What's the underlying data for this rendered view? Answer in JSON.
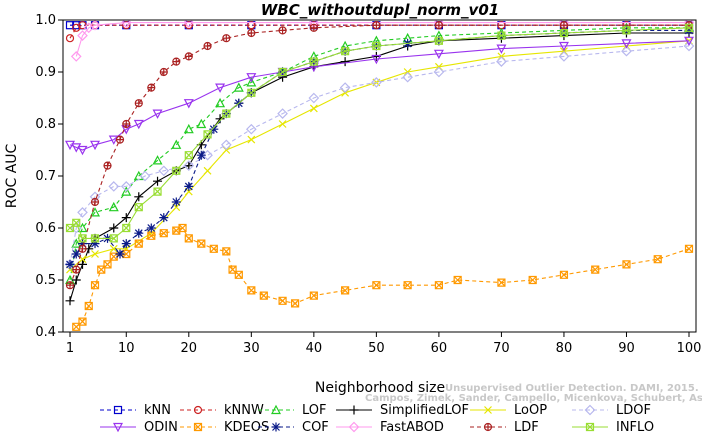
{
  "chart_data": {
    "type": "line",
    "title": "WBC_withoutdupl_norm_v01",
    "xlabel": "Neighborhood size",
    "ylabel": "ROC AUC",
    "xlim": [
      1,
      100
    ],
    "ylim": [
      0.4,
      1.0
    ],
    "xticks": [
      1,
      10,
      20,
      30,
      40,
      50,
      60,
      70,
      80,
      90,
      100
    ],
    "yticks": [
      0.4,
      0.5,
      0.6,
      0.7,
      0.8,
      0.9,
      1.0
    ],
    "xtick_labels": [
      "1",
      "10",
      "20",
      "30",
      "40",
      "50",
      "60",
      "70",
      "80",
      "90",
      "100"
    ],
    "ytick_labels": [
      "0.4",
      "0.5",
      "0.6",
      "0.7",
      "0.8",
      "0.9",
      "1.0"
    ],
    "grid": false,
    "legend_position": "bottom",
    "series": [
      {
        "name": "kNN",
        "color": "#0000cc",
        "marker": "square",
        "dash": "4,3",
        "points": [
          [
            1,
            0.99
          ],
          [
            2,
            0.99
          ],
          [
            3,
            0.99
          ],
          [
            5,
            0.99
          ],
          [
            10,
            0.99
          ],
          [
            20,
            0.99
          ],
          [
            30,
            0.99
          ],
          [
            40,
            0.99
          ],
          [
            50,
            0.99
          ],
          [
            60,
            0.99
          ],
          [
            70,
            0.99
          ],
          [
            80,
            0.99
          ],
          [
            90,
            0.99
          ],
          [
            100,
            0.99
          ]
        ]
      },
      {
        "name": "kNNW",
        "color": "#cc2222",
        "marker": "circle",
        "dash": "4,3",
        "points": [
          [
            1,
            0.965
          ],
          [
            2,
            0.985
          ],
          [
            3,
            0.99
          ],
          [
            5,
            0.99
          ],
          [
            10,
            0.99
          ],
          [
            20,
            0.99
          ],
          [
            30,
            0.99
          ],
          [
            40,
            0.99
          ],
          [
            50,
            0.99
          ],
          [
            60,
            0.99
          ],
          [
            70,
            0.99
          ],
          [
            80,
            0.99
          ],
          [
            90,
            0.99
          ],
          [
            100,
            0.99
          ]
        ]
      },
      {
        "name": "LOF",
        "color": "#22cc22",
        "marker": "triangle-up",
        "dash": "4,3",
        "points": [
          [
            1,
            0.5
          ],
          [
            2,
            0.57
          ],
          [
            3,
            0.6
          ],
          [
            5,
            0.63
          ],
          [
            8,
            0.64
          ],
          [
            10,
            0.67
          ],
          [
            12,
            0.7
          ],
          [
            15,
            0.73
          ],
          [
            18,
            0.76
          ],
          [
            20,
            0.79
          ],
          [
            22,
            0.8
          ],
          [
            25,
            0.84
          ],
          [
            28,
            0.87
          ],
          [
            30,
            0.88
          ],
          [
            35,
            0.9
          ],
          [
            40,
            0.93
          ],
          [
            45,
            0.95
          ],
          [
            50,
            0.96
          ],
          [
            55,
            0.965
          ],
          [
            60,
            0.97
          ],
          [
            70,
            0.975
          ],
          [
            80,
            0.98
          ],
          [
            90,
            0.985
          ],
          [
            100,
            0.985
          ]
        ]
      },
      {
        "name": "SimplifiedLOF",
        "color": "#000000",
        "marker": "plus",
        "dash": "",
        "points": [
          [
            1,
            0.46
          ],
          [
            2,
            0.5
          ],
          [
            3,
            0.53
          ],
          [
            4,
            0.56
          ],
          [
            5,
            0.58
          ],
          [
            8,
            0.6
          ],
          [
            10,
            0.62
          ],
          [
            12,
            0.66
          ],
          [
            15,
            0.69
          ],
          [
            18,
            0.71
          ],
          [
            20,
            0.72
          ],
          [
            22,
            0.76
          ],
          [
            25,
            0.81
          ],
          [
            28,
            0.84
          ],
          [
            30,
            0.86
          ],
          [
            35,
            0.89
          ],
          [
            40,
            0.91
          ],
          [
            45,
            0.92
          ],
          [
            50,
            0.93
          ],
          [
            55,
            0.95
          ],
          [
            60,
            0.96
          ],
          [
            70,
            0.965
          ],
          [
            80,
            0.97
          ],
          [
            90,
            0.975
          ],
          [
            100,
            0.975
          ]
        ]
      },
      {
        "name": "LoOP",
        "color": "#e6e600",
        "marker": "cross",
        "dash": "",
        "points": [
          [
            1,
            0.52
          ],
          [
            3,
            0.54
          ],
          [
            5,
            0.55
          ],
          [
            8,
            0.56
          ],
          [
            10,
            0.56
          ],
          [
            14,
            0.59
          ],
          [
            18,
            0.64
          ],
          [
            20,
            0.67
          ],
          [
            23,
            0.71
          ],
          [
            26,
            0.75
          ],
          [
            30,
            0.77
          ],
          [
            35,
            0.8
          ],
          [
            40,
            0.83
          ],
          [
            45,
            0.86
          ],
          [
            50,
            0.88
          ],
          [
            55,
            0.9
          ],
          [
            60,
            0.91
          ],
          [
            70,
            0.93
          ],
          [
            80,
            0.94
          ],
          [
            90,
            0.95
          ],
          [
            100,
            0.96
          ]
        ]
      },
      {
        "name": "LDOF",
        "color": "#b8b8ee",
        "marker": "diamond",
        "dash": "4,3",
        "points": [
          [
            1,
            0.53
          ],
          [
            2,
            0.6
          ],
          [
            3,
            0.63
          ],
          [
            5,
            0.66
          ],
          [
            8,
            0.68
          ],
          [
            10,
            0.68
          ],
          [
            13,
            0.7
          ],
          [
            16,
            0.71
          ],
          [
            20,
            0.72
          ],
          [
            23,
            0.74
          ],
          [
            26,
            0.76
          ],
          [
            30,
            0.79
          ],
          [
            35,
            0.82
          ],
          [
            40,
            0.85
          ],
          [
            45,
            0.87
          ],
          [
            50,
            0.88
          ],
          [
            55,
            0.89
          ],
          [
            60,
            0.9
          ],
          [
            70,
            0.92
          ],
          [
            80,
            0.93
          ],
          [
            90,
            0.94
          ],
          [
            100,
            0.95
          ]
        ]
      },
      {
        "name": "ODIN",
        "color": "#9933ee",
        "marker": "triangle-down",
        "dash": "",
        "points": [
          [
            1,
            0.76
          ],
          [
            2,
            0.755
          ],
          [
            3,
            0.75
          ],
          [
            5,
            0.76
          ],
          [
            8,
            0.77
          ],
          [
            10,
            0.79
          ],
          [
            12,
            0.8
          ],
          [
            15,
            0.82
          ],
          [
            20,
            0.84
          ],
          [
            25,
            0.87
          ],
          [
            30,
            0.89
          ],
          [
            35,
            0.9
          ],
          [
            40,
            0.91
          ],
          [
            50,
            0.925
          ],
          [
            60,
            0.935
          ],
          [
            70,
            0.945
          ],
          [
            80,
            0.95
          ],
          [
            90,
            0.955
          ],
          [
            100,
            0.96
          ]
        ]
      },
      {
        "name": "KDEOS",
        "color": "#ff9900",
        "marker": "boxed-cross",
        "dash": "4,3",
        "points": [
          [
            2,
            0.41
          ],
          [
            3,
            0.42
          ],
          [
            4,
            0.45
          ],
          [
            5,
            0.49
          ],
          [
            6,
            0.52
          ],
          [
            7,
            0.53
          ],
          [
            8,
            0.545
          ],
          [
            10,
            0.55
          ],
          [
            12,
            0.57
          ],
          [
            14,
            0.585
          ],
          [
            16,
            0.59
          ],
          [
            18,
            0.595
          ],
          [
            19,
            0.6
          ],
          [
            20,
            0.58
          ],
          [
            22,
            0.57
          ],
          [
            24,
            0.56
          ],
          [
            26,
            0.555
          ],
          [
            27,
            0.52
          ],
          [
            28,
            0.51
          ],
          [
            30,
            0.48
          ],
          [
            32,
            0.47
          ],
          [
            35,
            0.46
          ],
          [
            37,
            0.455
          ],
          [
            40,
            0.47
          ],
          [
            45,
            0.48
          ],
          [
            50,
            0.49
          ],
          [
            55,
            0.49
          ],
          [
            60,
            0.49
          ],
          [
            63,
            0.5
          ],
          [
            70,
            0.495
          ],
          [
            75,
            0.5
          ],
          [
            80,
            0.51
          ],
          [
            85,
            0.52
          ],
          [
            90,
            0.53
          ],
          [
            95,
            0.54
          ],
          [
            100,
            0.56
          ]
        ]
      },
      {
        "name": "COF",
        "color": "#0a1a88",
        "marker": "asterisk",
        "dash": "4,3",
        "points": [
          [
            1,
            0.53
          ],
          [
            2,
            0.55
          ],
          [
            3,
            0.57
          ],
          [
            5,
            0.57
          ],
          [
            7,
            0.58
          ],
          [
            9,
            0.55
          ],
          [
            10,
            0.57
          ],
          [
            12,
            0.59
          ],
          [
            14,
            0.6
          ],
          [
            16,
            0.62
          ],
          [
            18,
            0.65
          ],
          [
            20,
            0.68
          ],
          [
            22,
            0.74
          ],
          [
            24,
            0.79
          ],
          [
            26,
            0.82
          ],
          [
            28,
            0.84
          ],
          [
            30,
            0.86
          ],
          [
            35,
            0.9
          ],
          [
            40,
            0.92
          ],
          [
            45,
            0.94
          ],
          [
            50,
            0.95
          ],
          [
            55,
            0.955
          ],
          [
            60,
            0.96
          ],
          [
            70,
            0.97
          ],
          [
            80,
            0.975
          ],
          [
            90,
            0.98
          ],
          [
            100,
            0.98
          ]
        ]
      },
      {
        "name": "FastABOD",
        "color": "#ff99ee",
        "marker": "diamond",
        "dash": "",
        "points": [
          [
            2,
            0.93
          ],
          [
            3,
            0.97
          ],
          [
            4,
            0.985
          ],
          [
            5,
            0.99
          ],
          [
            10,
            0.995
          ],
          [
            20,
            0.995
          ],
          [
            40,
            0.995
          ],
          [
            60,
            0.995
          ],
          [
            80,
            0.995
          ],
          [
            100,
            0.995
          ]
        ]
      },
      {
        "name": "LDF",
        "color": "#aa2222",
        "marker": "circle-plus",
        "dash": "4,3",
        "points": [
          [
            1,
            0.49
          ],
          [
            2,
            0.52
          ],
          [
            3,
            0.56
          ],
          [
            5,
            0.65
          ],
          [
            7,
            0.72
          ],
          [
            9,
            0.77
          ],
          [
            10,
            0.8
          ],
          [
            12,
            0.84
          ],
          [
            14,
            0.87
          ],
          [
            16,
            0.9
          ],
          [
            18,
            0.92
          ],
          [
            20,
            0.93
          ],
          [
            23,
            0.95
          ],
          [
            26,
            0.965
          ],
          [
            30,
            0.975
          ],
          [
            35,
            0.98
          ],
          [
            40,
            0.985
          ],
          [
            50,
            0.99
          ],
          [
            60,
            0.99
          ],
          [
            80,
            0.99
          ],
          [
            100,
            0.99
          ]
        ]
      },
      {
        "name": "INFLO",
        "color": "#99dd33",
        "marker": "boxed-cross",
        "dash": "",
        "points": [
          [
            1,
            0.6
          ],
          [
            2,
            0.61
          ],
          [
            3,
            0.58
          ],
          [
            5,
            0.58
          ],
          [
            8,
            0.58
          ],
          [
            10,
            0.6
          ],
          [
            12,
            0.64
          ],
          [
            15,
            0.67
          ],
          [
            18,
            0.71
          ],
          [
            20,
            0.74
          ],
          [
            23,
            0.78
          ],
          [
            26,
            0.82
          ],
          [
            30,
            0.86
          ],
          [
            35,
            0.9
          ],
          [
            40,
            0.92
          ],
          [
            45,
            0.94
          ],
          [
            50,
            0.95
          ],
          [
            60,
            0.96
          ],
          [
            70,
            0.97
          ],
          [
            80,
            0.975
          ],
          [
            90,
            0.98
          ],
          [
            100,
            0.985
          ]
        ]
      }
    ],
    "legend_rows": [
      [
        "kNN",
        "kNNW",
        "LOF",
        "SimplifiedLOF",
        "LoOP",
        "LDOF"
      ],
      [
        "ODIN",
        "KDEOS",
        "COF",
        "FastABOD",
        "LDF",
        "INFLO"
      ]
    ]
  },
  "watermark": {
    "line1": "Unsupervised Outlier Detection. DAMI, 2015.",
    "line2": "Campos, Zimek, Sander, Campello, Micenkova, Schubert, Assent, Houle"
  }
}
